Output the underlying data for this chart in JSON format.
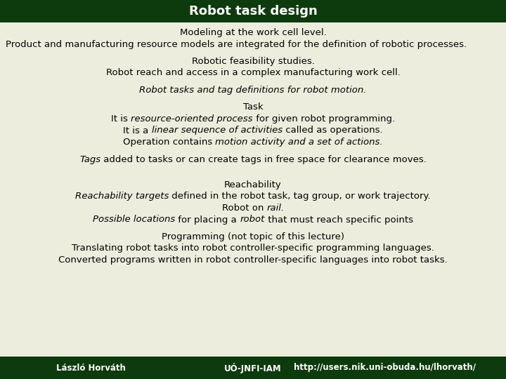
{
  "title": "Robot task design",
  "title_bg_color": "#0d3b0d",
  "title_text_color": "#ffffff",
  "body_bg_color": "#ededde",
  "body_text_color": "#000000",
  "footer_bg_color": "#0d3b0d",
  "footer_text_color": "#ffffff",
  "figsize": [
    7.2,
    5.4
  ],
  "dpi": 100,
  "footer_items": [
    "László Horváth",
    "UÓ-JNFI-IAM",
    "http://users.nik.uni-obuda.hu/lhorvath/"
  ]
}
